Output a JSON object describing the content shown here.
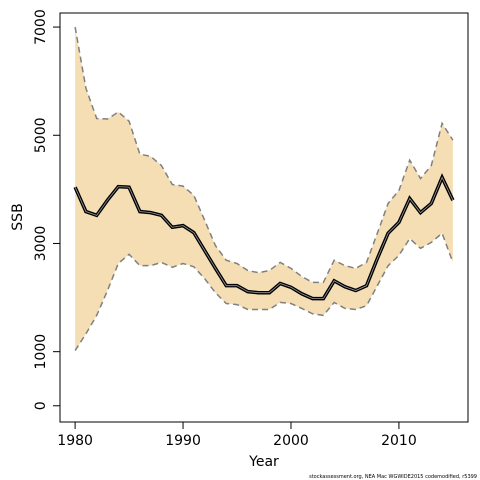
{
  "chart_data": {
    "type": "line",
    "xlabel": "Year",
    "ylabel": "SSB",
    "footnote": "stockassessment.org, NEA Mac WGWIDE2015 codemodified, r5399",
    "x": [
      1980,
      1981,
      1982,
      1983,
      1984,
      1985,
      1986,
      1987,
      1988,
      1989,
      1990,
      1991,
      1992,
      1993,
      1994,
      1995,
      1996,
      1997,
      1998,
      1999,
      2000,
      2001,
      2002,
      2003,
      2004,
      2005,
      2006,
      2007,
      2008,
      2009,
      2010,
      2011,
      2012,
      2013,
      2014,
      2015
    ],
    "values": [
      4040,
      3590,
      3520,
      3800,
      4050,
      4040,
      3590,
      3570,
      3520,
      3300,
      3330,
      3200,
      2870,
      2540,
      2220,
      2220,
      2110,
      2090,
      2090,
      2260,
      2190,
      2070,
      1980,
      1980,
      2310,
      2200,
      2130,
      2220,
      2720,
      3190,
      3390,
      3830,
      3570,
      3740,
      4220,
      3800
    ],
    "upper": [
      7000,
      5870,
      5310,
      5300,
      5430,
      5260,
      4650,
      4610,
      4440,
      4090,
      4060,
      3890,
      3430,
      2960,
      2690,
      2630,
      2500,
      2460,
      2500,
      2650,
      2540,
      2390,
      2280,
      2280,
      2690,
      2590,
      2540,
      2650,
      3190,
      3740,
      3980,
      4540,
      4200,
      4440,
      5220,
      4910
    ],
    "lower": [
      1020,
      1330,
      1670,
      2130,
      2630,
      2800,
      2590,
      2590,
      2650,
      2560,
      2630,
      2570,
      2350,
      2090,
      1890,
      1870,
      1780,
      1780,
      1780,
      1910,
      1890,
      1800,
      1700,
      1670,
      1910,
      1800,
      1780,
      1850,
      2220,
      2590,
      2780,
      3090,
      2910,
      3020,
      3190,
      2650
    ],
    "color": "#000000",
    "band_color": "#f5deb3",
    "band_edge_color": "#808080",
    "xlim": [
      1978.6,
      2016.4
    ],
    "xticks": [
      1980,
      1990,
      2000,
      2010
    ],
    "ylim": [
      -300,
      7260
    ],
    "yticks": [
      0,
      1000,
      3000,
      5000,
      7000
    ]
  }
}
